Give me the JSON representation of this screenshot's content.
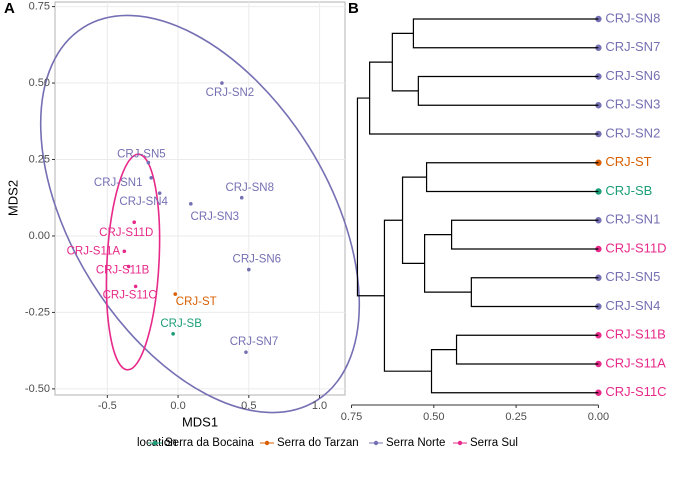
{
  "chart_data": [
    {
      "type": "scatter",
      "panel": "A",
      "xlabel": "MDS1",
      "ylabel": "MDS2",
      "xlim": [
        -0.87,
        1.18
      ],
      "ylim": [
        -0.52,
        0.765
      ],
      "xticks": [
        -0.5,
        {
          "value": 0,
          "label": "0.0"
        },
        0.5,
        {
          "value": 1,
          "label": "1.0"
        }
      ],
      "yticks": [
        {
          "value": -0.5,
          "label": "-0.50"
        },
        -0.25,
        {
          "value": 0,
          "label": "0.00"
        },
        0.25,
        {
          "value": 0.5,
          "label": "0.50"
        },
        0.75
      ],
      "grid": true,
      "legend_title": "location",
      "legend": "bottom",
      "series": [
        {
          "name": "Serra da Bocaina",
          "color": "#1b9e77",
          "labels": [
            "CRJ-SB"
          ],
          "x": [
            -0.035
          ],
          "values": [
            -0.32
          ]
        },
        {
          "name": "Serra do Tarzan",
          "color": "#d95f02",
          "labels": [
            "CRJ-ST"
          ],
          "x": [
            -0.02
          ],
          "values": [
            -0.19
          ]
        },
        {
          "name": "Serra Norte",
          "color": "#7570b3",
          "labels": [
            "CRJ-SN2",
            "CRJ-SN5",
            "CRJ-SN1",
            "CRJ-SN4",
            "CRJ-SN3",
            "CRJ-SN8",
            "CRJ-SN6",
            "CRJ-SN7"
          ],
          "x": [
            0.31,
            -0.21,
            -0.19,
            -0.13,
            0.09,
            0.45,
            0.5,
            0.48
          ],
          "values": [
            0.5,
            0.24,
            0.19,
            0.14,
            0.105,
            0.125,
            -0.11,
            -0.38
          ]
        },
        {
          "name": "Serra Sul",
          "color": "#e7298a",
          "labels": [
            "CRJ-S11D",
            "CRJ-S11A",
            "CRJ-S11B",
            "CRJ-S11C"
          ],
          "x": [
            -0.31,
            -0.38,
            -0.35,
            -0.3
          ],
          "values": [
            0.045,
            -0.05,
            -0.1,
            -0.165
          ]
        }
      ]
    },
    {
      "type": "dendrogram",
      "panel": "B",
      "xlim": [
        0.785,
        -0.02
      ],
      "xticks": [
        0.75,
        {
          "value": 0.5,
          "label": "0.50"
        },
        0.25,
        {
          "value": 0,
          "label": "0.00"
        }
      ],
      "leaves": [
        {
          "label": "CRJ-SN8",
          "color": "#7570b3"
        },
        {
          "label": "CRJ-SN7",
          "color": "#7570b3"
        },
        {
          "label": "CRJ-SN6",
          "color": "#7570b3"
        },
        {
          "label": "CRJ-SN3",
          "color": "#7570b3"
        },
        {
          "label": "CRJ-SN2",
          "color": "#7570b3"
        },
        {
          "label": "CRJ-ST",
          "color": "#d95f02"
        },
        {
          "label": "CRJ-SB",
          "color": "#1b9e77"
        },
        {
          "label": "CRJ-SN1",
          "color": "#7570b3"
        },
        {
          "label": "CRJ-S11D",
          "color": "#e7298a"
        },
        {
          "label": "CRJ-SN5",
          "color": "#7570b3"
        },
        {
          "label": "CRJ-SN4",
          "color": "#7570b3"
        },
        {
          "label": "CRJ-S11B",
          "color": "#e7298a"
        },
        {
          "label": "CRJ-S11A",
          "color": "#e7298a"
        },
        {
          "label": "CRJ-S11C",
          "color": "#e7298a"
        }
      ],
      "merges": [
        {
          "children": [
            0,
            1
          ],
          "height": 0.562
        },
        {
          "children": [
            2,
            3
          ],
          "height": 0.547
        },
        {
          "children": [
            14,
            15
          ],
          "height": 0.626
        },
        {
          "children": [
            16,
            4
          ],
          "height": 0.695
        },
        {
          "children": [
            5,
            6
          ],
          "height": 0.522
        },
        {
          "children": [
            7,
            8
          ],
          "height": 0.446
        },
        {
          "children": [
            9,
            10
          ],
          "height": 0.386
        },
        {
          "children": [
            19,
            20
          ],
          "height": 0.528
        },
        {
          "children": [
            18,
            21
          ],
          "height": 0.595
        },
        {
          "children": [
            11,
            12
          ],
          "height": 0.431
        },
        {
          "children": [
            23,
            13
          ],
          "height": 0.507
        },
        {
          "children": [
            22,
            24
          ],
          "height": 0.65
        },
        {
          "children": [
            17,
            25
          ],
          "height": 0.732
        }
      ]
    }
  ]
}
